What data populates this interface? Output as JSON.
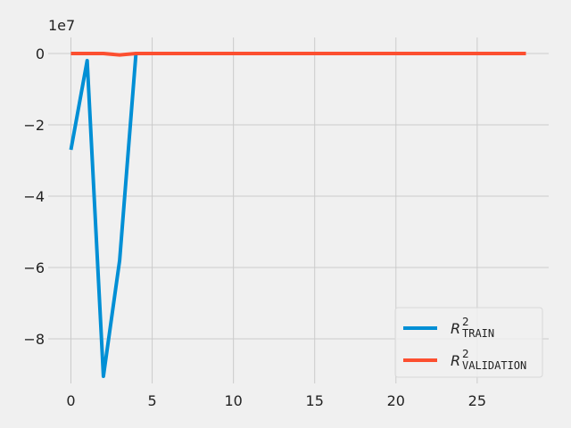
{
  "chart_data": {
    "type": "line",
    "title": "",
    "xlabel": "",
    "ylabel": "",
    "y_offset_label": "1e7",
    "xlim": [
      -1.4,
      29.4
    ],
    "ylim": [
      -92.5,
      4.5
    ],
    "x_ticks": [
      0,
      5,
      10,
      15,
      20,
      25
    ],
    "x_tick_labels": [
      "0",
      "5",
      "10",
      "15",
      "20",
      "25"
    ],
    "y_ticks": [
      0,
      -20,
      -40,
      -60,
      -80
    ],
    "y_tick_labels": [
      "0",
      "−2",
      "−4",
      "−6",
      "−8"
    ],
    "grid": true,
    "legend_position": "lower-right",
    "series": [
      {
        "name": "R²TRAIN",
        "legend_main": "R",
        "legend_sup": "2",
        "legend_sub": "TRAIN",
        "color": "#008fd5",
        "x": [
          0,
          1,
          2,
          3,
          4,
          5,
          6,
          7,
          8,
          9,
          10,
          11,
          12,
          13,
          14,
          15,
          16,
          17,
          18,
          19,
          20,
          21,
          22,
          23,
          24,
          25,
          26,
          27,
          28
        ],
        "values": [
          -27,
          -2,
          -90.5,
          -58,
          0,
          0,
          0,
          0,
          0,
          0,
          0,
          0,
          0,
          0,
          0,
          0,
          0,
          0,
          0,
          0,
          0,
          0,
          0,
          0,
          0,
          0,
          0,
          0,
          0
        ]
      },
      {
        "name": "R²VALIDATION",
        "legend_main": "R",
        "legend_sup": "2",
        "legend_sub": "VALIDATION",
        "color": "#fc4f30",
        "x": [
          0,
          1,
          2,
          3,
          4,
          5,
          6,
          7,
          8,
          9,
          10,
          11,
          12,
          13,
          14,
          15,
          16,
          17,
          18,
          19,
          20,
          21,
          22,
          23,
          24,
          25,
          26,
          27,
          28
        ],
        "values": [
          0,
          0,
          0,
          -0.4,
          0,
          0,
          0,
          0,
          0,
          0,
          0,
          0,
          0,
          0,
          0,
          0,
          0,
          0,
          0,
          0,
          0,
          0,
          0,
          0,
          0,
          0,
          0,
          0,
          0
        ]
      }
    ]
  }
}
